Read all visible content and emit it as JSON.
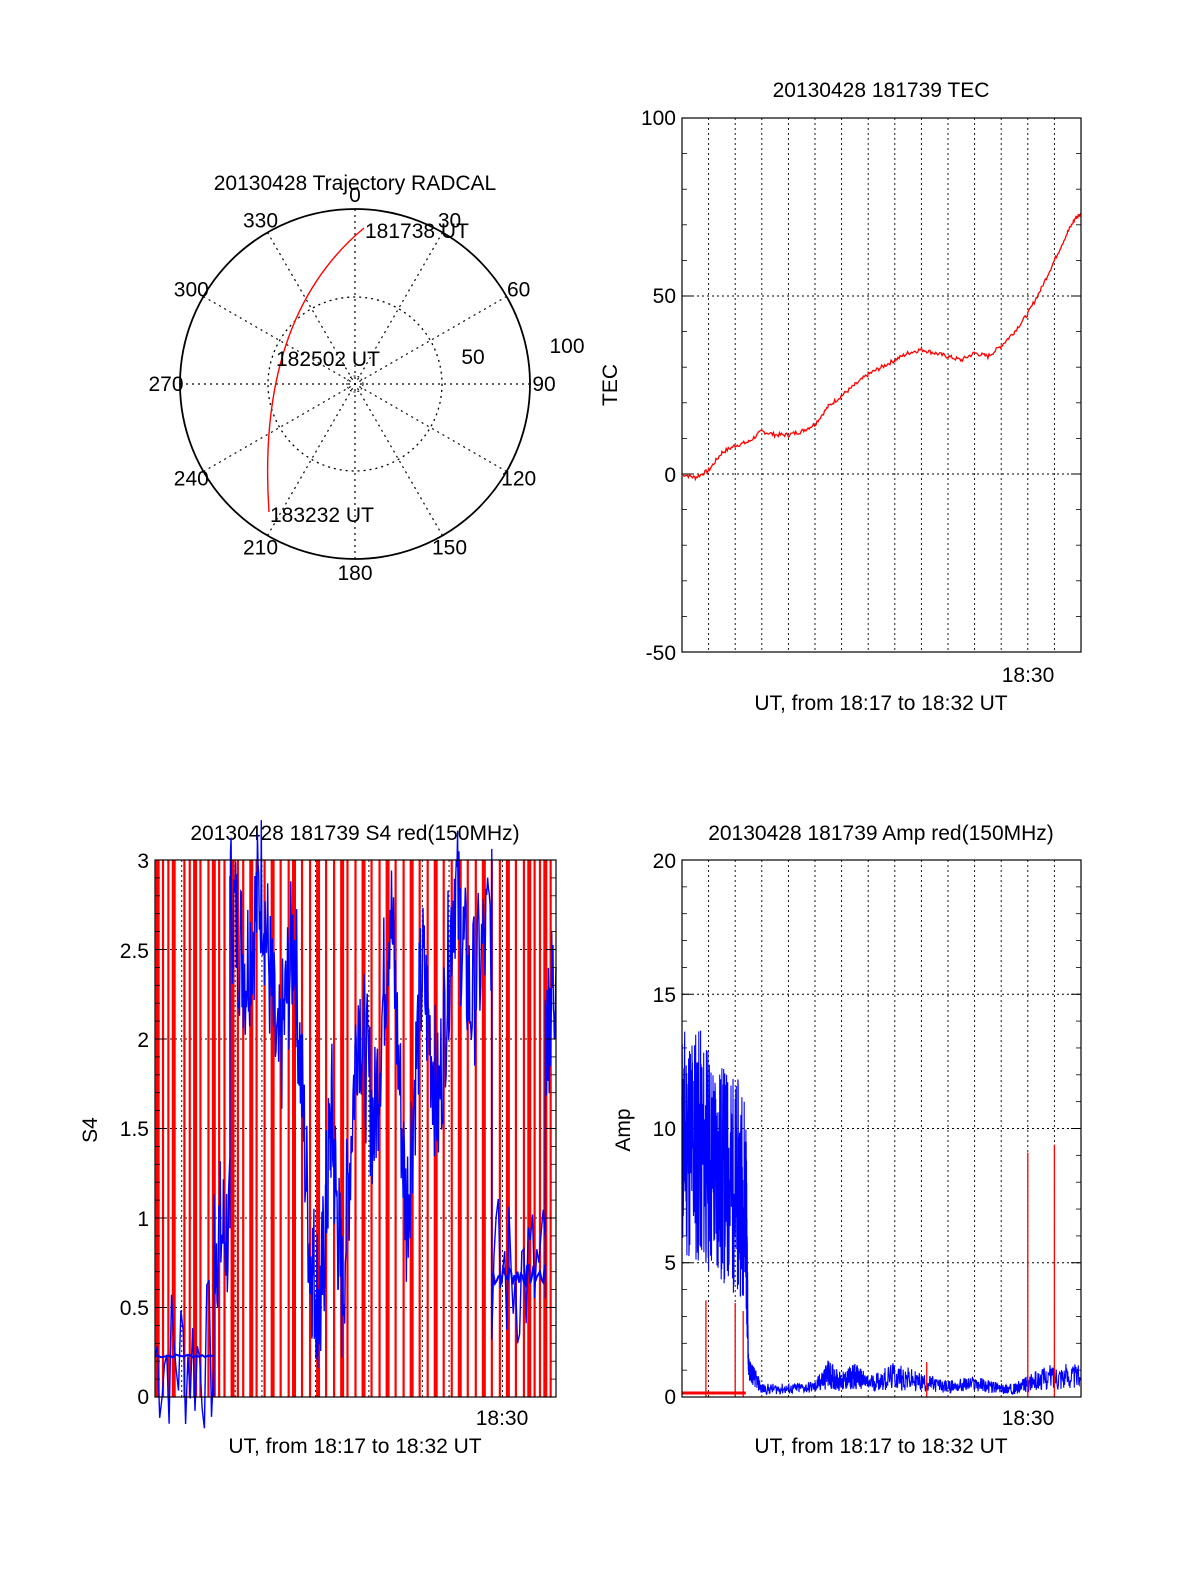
{
  "polar": {
    "title": "20130428 Trajectory RADCAL",
    "azimuth_labels": [
      "0",
      "30",
      "60",
      "90",
      "120",
      "150",
      "180",
      "210",
      "240",
      "270",
      "300",
      "330"
    ],
    "radial_labels": [
      "50",
      "100"
    ],
    "start_label": "181738 UT",
    "mid_label": "182502 UT",
    "end_label": "183232 UT"
  },
  "chart_data": [
    {
      "type": "line",
      "title": "20130428 181739 TEC",
      "xlabel": "UT, from 18:17 to 18:32 UT",
      "ylabel": "TEC",
      "x_tick_labels": [
        "18:30"
      ],
      "y_tick_labels": [
        "-50",
        "0",
        "50",
        "100"
      ],
      "xlim": [
        0,
        15
      ],
      "ylim": [
        -50,
        100
      ],
      "grid": true,
      "series": [
        {
          "color": "#ff0000",
          "x": [
            0,
            0.5,
            1.0,
            1.5,
            2.0,
            2.5,
            3.0,
            3.5,
            4.0,
            4.5,
            5.0,
            5.5,
            6.0,
            6.5,
            7.0,
            7.5,
            8.0,
            8.5,
            9.0,
            9.5,
            10.0,
            10.5,
            11.0,
            11.5,
            12.0,
            12.5,
            13.0,
            13.5,
            14.0,
            14.5,
            14.8,
            15.0
          ],
          "y": [
            0,
            -1,
            1,
            6,
            8,
            9,
            12,
            11,
            11,
            12,
            14,
            19,
            22,
            25,
            28,
            30,
            32,
            34,
            35,
            34,
            33,
            32,
            34,
            33,
            36,
            40,
            45,
            52,
            60,
            68,
            72,
            73
          ]
        }
      ]
    },
    {
      "type": "line",
      "title": "20130428 181739 S4 red(150MHz)",
      "xlabel": "UT, from 18:17 to 18:32 UT",
      "ylabel": "S4",
      "x_tick_labels": [
        "18:30"
      ],
      "y_tick_labels": [
        "0",
        "0.5",
        "1",
        "1.5",
        "2",
        "2.5",
        "3"
      ],
      "xlim": [
        0,
        15
      ],
      "ylim": [
        0,
        3
      ],
      "grid": true,
      "series": [
        {
          "color": "#ff0000",
          "spikes_x": [
            0.1,
            0.3,
            0.5,
            0.7,
            1.1,
            1.3,
            1.5,
            1.7,
            2.0,
            2.2,
            2.4,
            2.6,
            2.9,
            3.1,
            3.3,
            3.6,
            3.8,
            4.1,
            4.4,
            4.7,
            5.0,
            5.2,
            5.5,
            5.8,
            6.1,
            6.4,
            6.7,
            7.0,
            7.2,
            7.5,
            7.8,
            8.1,
            8.4,
            8.7,
            9.0,
            9.3,
            9.6,
            9.9,
            10.2,
            10.5,
            10.8,
            11.1,
            11.4,
            11.7,
            12.0,
            12.3,
            12.6,
            12.9,
            13.2,
            13.5,
            13.8,
            14.0,
            14.2,
            14.4,
            14.6,
            14.8
          ],
          "spike_top": 3
        },
        {
          "color": "#0000ff",
          "x": [
            0.0,
            2.2,
            2.2,
            2.8,
            2.8,
            3.4,
            4.0,
            4.6,
            5.2,
            5.8,
            6.2,
            6.6,
            7.0,
            7.6,
            8.2,
            8.8,
            9.4,
            10.0,
            10.6,
            11.2,
            11.8,
            12.6,
            12.6,
            14.6,
            14.6,
            15.0
          ],
          "y": [
            0.23,
            0.23,
            0.9,
            0.92,
            2.8,
            2.4,
            2.9,
            1.8,
            2.6,
            0.8,
            0.5,
            1.6,
            0.55,
            2.2,
            1.5,
            2.8,
            1.0,
            2.4,
            1.6,
            2.9,
            2.2,
            2.7,
            0.7,
            0.68,
            2.0,
            2.4
          ]
        }
      ]
    },
    {
      "type": "line",
      "title": "20130428 181739 Amp red(150MHz)",
      "xlabel": "UT, from 18:17 to 18:32 UT",
      "ylabel": "Amp",
      "x_tick_labels": [
        "18:30"
      ],
      "y_tick_labels": [
        "0",
        "5",
        "10",
        "15",
        "20"
      ],
      "xlim": [
        0,
        15
      ],
      "ylim": [
        0,
        20
      ],
      "grid": true,
      "series": [
        {
          "color": "#0000ff",
          "x": [
            0.0,
            0.5,
            1.0,
            1.5,
            2.0,
            2.4,
            2.5,
            3.0,
            4.0,
            5.0,
            5.5,
            6.0,
            6.5,
            7.0,
            8.0,
            9.0,
            10.0,
            11.0,
            12.0,
            12.5,
            13.0,
            14.0,
            15.0
          ],
          "y": [
            9.0,
            9.5,
            9.0,
            8.5,
            8.0,
            7.5,
            1.2,
            0.3,
            0.3,
            0.4,
            0.9,
            0.6,
            1.0,
            0.5,
            0.8,
            0.6,
            0.4,
            0.5,
            0.3,
            0.3,
            0.5,
            0.8,
            0.7
          ],
          "band_low": [
            5.0,
            4.8,
            4.6,
            4.0,
            3.8,
            3.6,
            0.6,
            0.1,
            0.1,
            0.15,
            0.3,
            0.2,
            0.3,
            0.2,
            0.25,
            0.2,
            0.15,
            0.2,
            0.1,
            0.1,
            0.2,
            0.3,
            0.3
          ],
          "band_high": [
            14.0,
            14.2,
            13.0,
            12.5,
            12.0,
            11.5,
            1.6,
            0.5,
            0.5,
            0.6,
            1.4,
            0.9,
            1.3,
            0.8,
            1.3,
            0.9,
            0.6,
            0.8,
            0.5,
            0.5,
            0.8,
            1.3,
            1.2
          ]
        },
        {
          "color": "#ff0000",
          "x": [
            0.0,
            2.4
          ],
          "y": [
            0.15,
            0.15
          ],
          "spikes_x": [
            0.9,
            2.0,
            2.3,
            9.2,
            13.0,
            14.0
          ],
          "spikes_y": [
            3.6,
            3.5,
            3.2,
            1.3,
            9.1,
            9.4
          ]
        }
      ]
    }
  ]
}
